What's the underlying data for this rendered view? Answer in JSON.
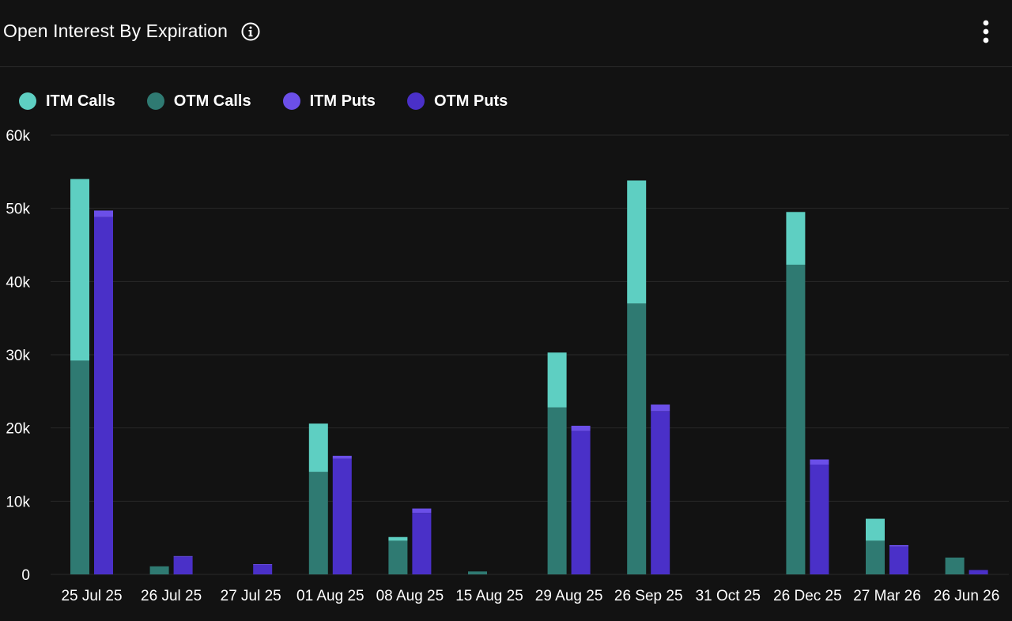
{
  "header": {
    "title": "Open Interest By Expiration",
    "info_icon": "info-icon",
    "menu_icon": "more-vertical-icon"
  },
  "colors": {
    "itm_calls": "#5ecfc2",
    "otm_calls": "#2f7a72",
    "itm_puts": "#6b4fe8",
    "otm_puts": "#4a30c8",
    "grid": "#2a2a2a",
    "text": "#ffffff"
  },
  "chart_data": {
    "type": "bar",
    "stacked": true,
    "grouped": true,
    "categories": [
      "25 Jul 25",
      "26 Jul 25",
      "27 Jul 25",
      "01 Aug 25",
      "08 Aug 25",
      "15 Aug 25",
      "29 Aug 25",
      "26 Sep 25",
      "31 Oct 25",
      "26 Dec 25",
      "27 Mar 26",
      "26 Jun 26"
    ],
    "series": [
      {
        "name": "ITM Calls",
        "stack": "calls",
        "values": [
          24800,
          0,
          0,
          6600,
          500,
          0,
          7500,
          16800,
          0,
          7200,
          3000,
          0
        ]
      },
      {
        "name": "OTM Calls",
        "stack": "calls",
        "values": [
          29200,
          1100,
          0,
          14000,
          4600,
          400,
          22800,
          37000,
          0,
          42300,
          4600,
          2300
        ]
      },
      {
        "name": "ITM Puts",
        "stack": "puts",
        "values": [
          900,
          100,
          100,
          400,
          600,
          0,
          700,
          900,
          0,
          700,
          200,
          0
        ]
      },
      {
        "name": "OTM Puts",
        "stack": "puts",
        "values": [
          48800,
          2400,
          1300,
          15800,
          8400,
          0,
          19600,
          22300,
          0,
          15000,
          3800,
          600
        ]
      }
    ],
    "yticks": [
      "0",
      "10k",
      "20k",
      "30k",
      "40k",
      "50k",
      "60k"
    ],
    "ylim": [
      0,
      60000
    ],
    "grid": true,
    "legend_position": "top-left"
  }
}
